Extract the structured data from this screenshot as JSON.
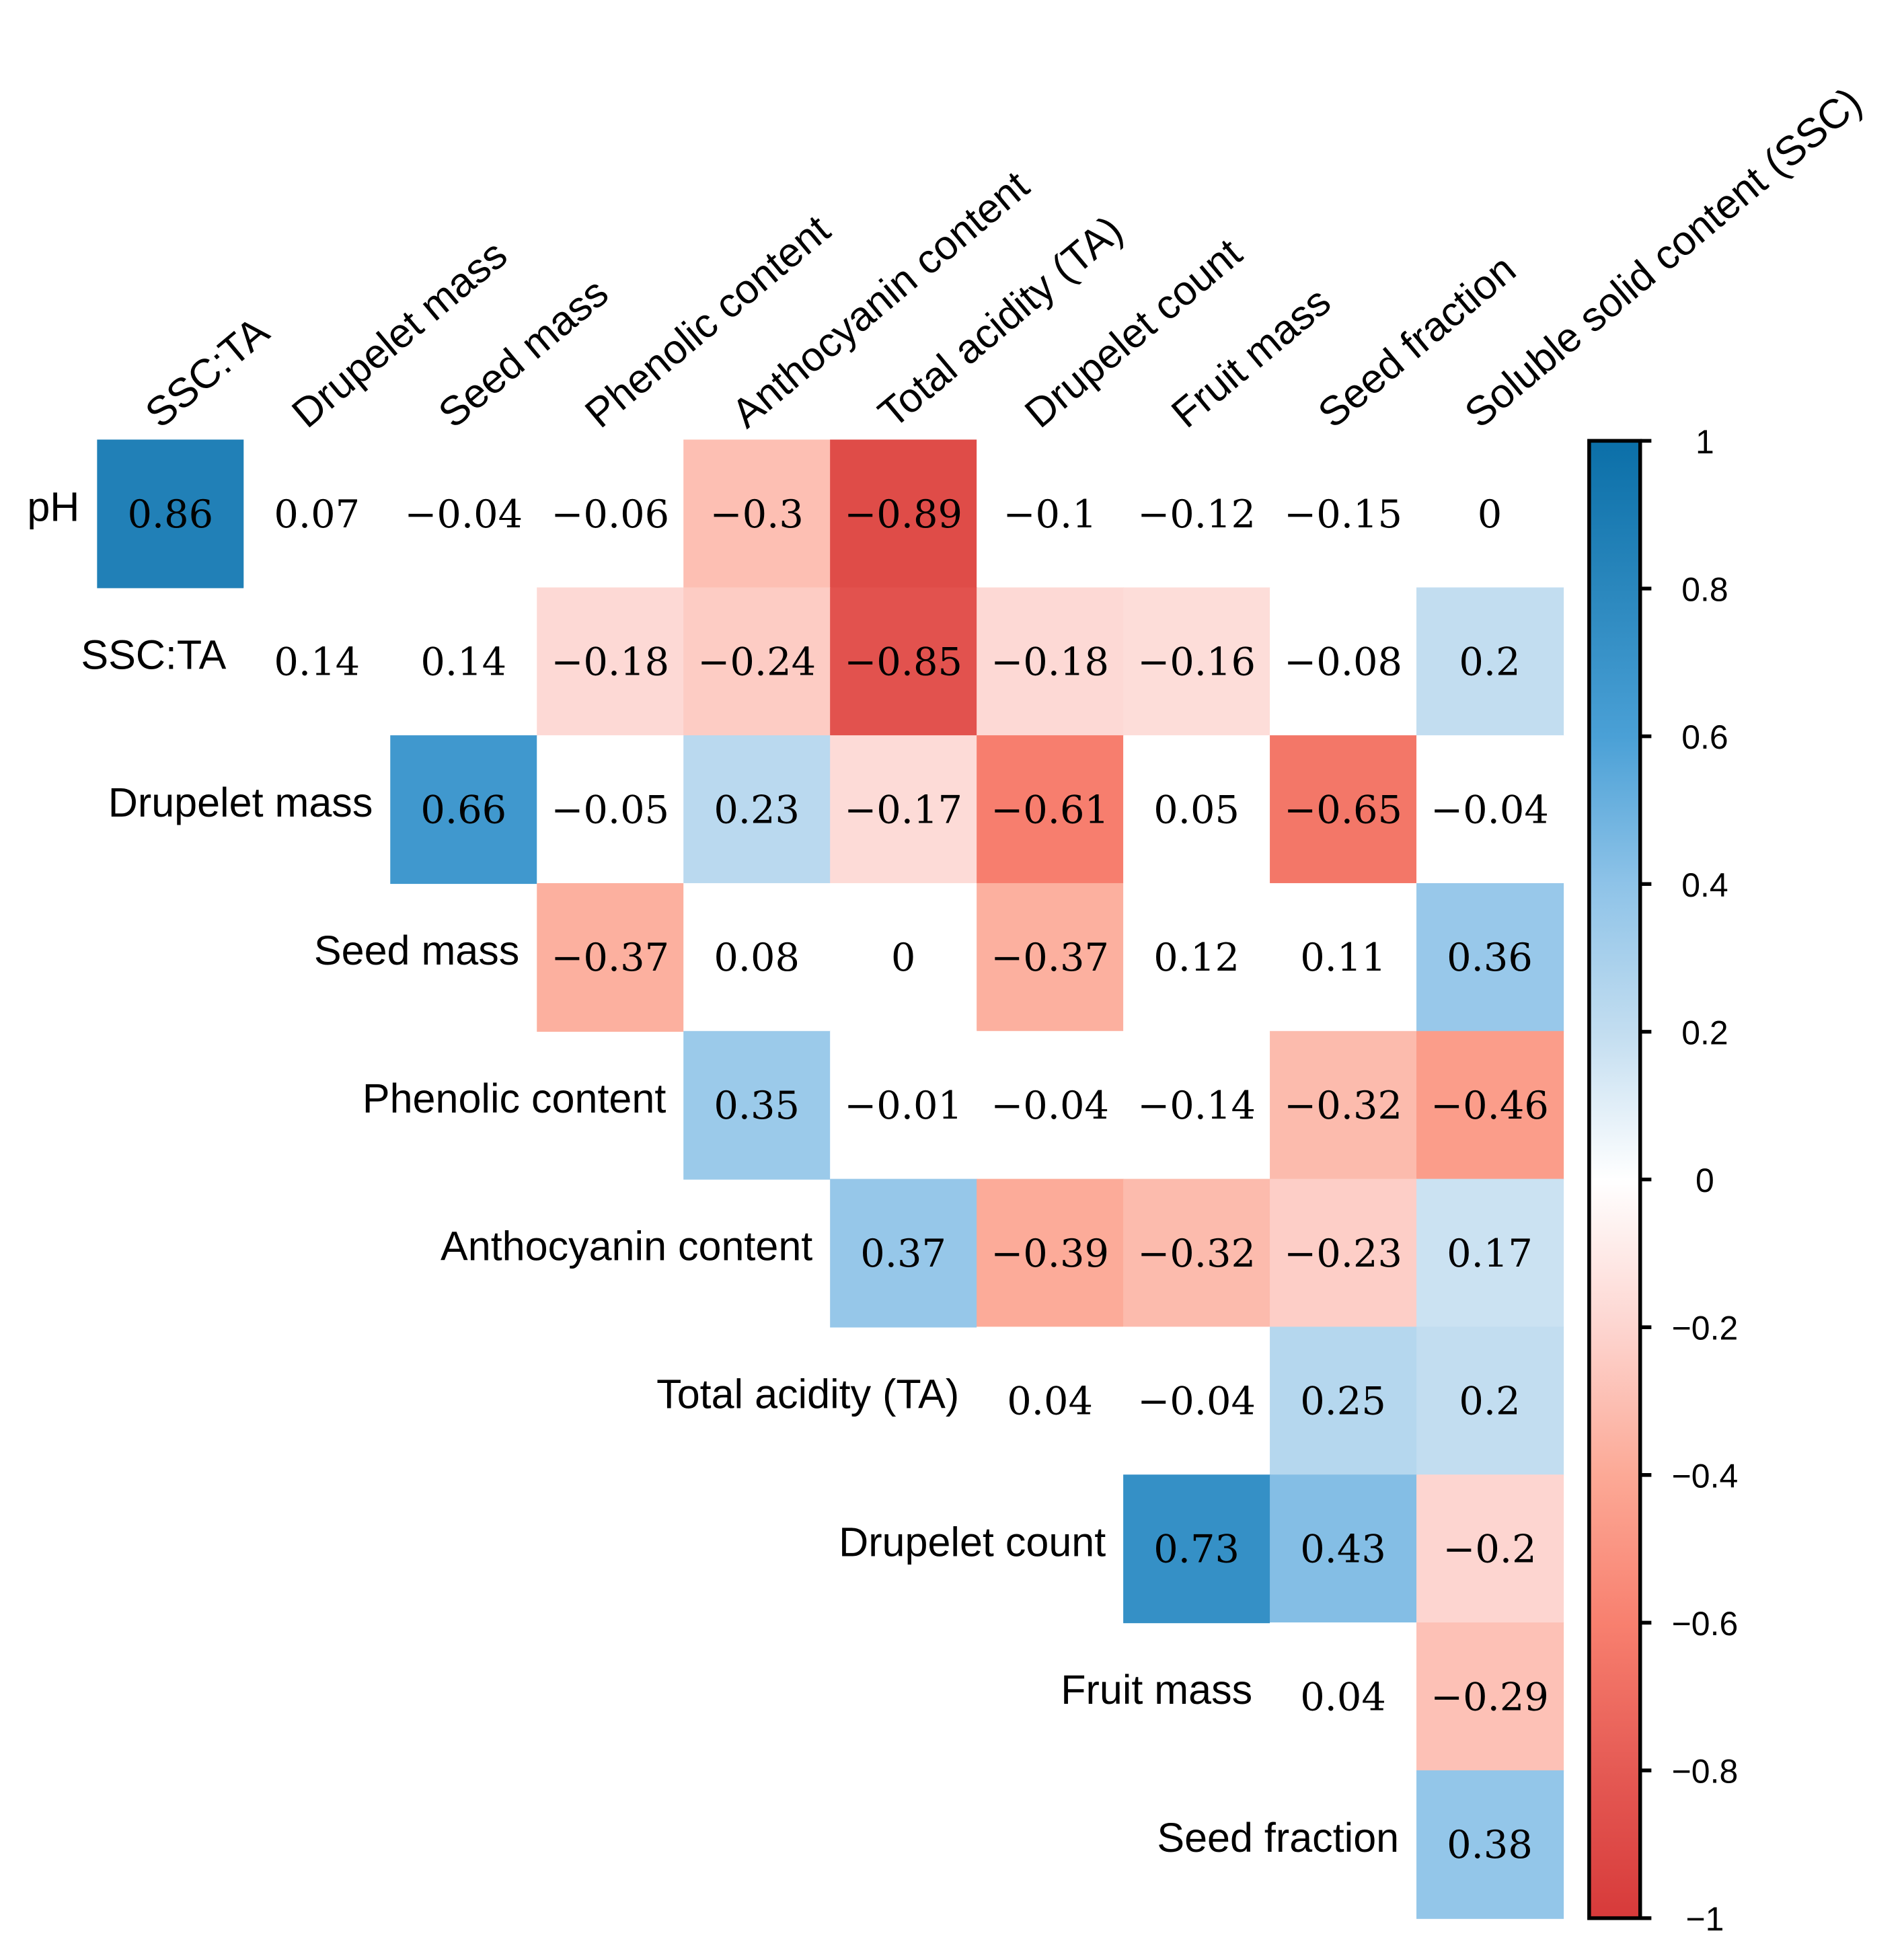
{
  "chart_data": {
    "type": "heatmap",
    "title": "",
    "columns": [
      "SSC:TA",
      "Drupelet mass",
      "Seed mass",
      "Phenolic content",
      "Anthocyanin content",
      "Total acidity (TA)",
      "Drupelet count",
      "Fruit mass",
      "Seed fraction",
      "Soluble solid content (SSC)"
    ],
    "rows": [
      "pH",
      "SSC:TA",
      "Drupelet mass",
      "Seed mass",
      "Phenolic content",
      "Anthocyanin content",
      "Total acidity (TA)",
      "Drupelet count",
      "Fruit mass",
      "Seed fraction"
    ],
    "values": [
      [
        0.86,
        0.07,
        -0.04,
        -0.06,
        -0.3,
        -0.89,
        -0.1,
        -0.12,
        -0.15,
        0
      ],
      [
        0.14,
        0.14,
        -0.18,
        -0.24,
        -0.85,
        -0.18,
        -0.16,
        -0.08,
        0.2
      ],
      [
        0.66,
        -0.05,
        0.23,
        -0.17,
        -0.61,
        0.05,
        -0.65,
        -0.04
      ],
      [
        -0.37,
        0.08,
        0,
        -0.37,
        0.12,
        0.11,
        0.36
      ],
      [
        0.35,
        -0.01,
        -0.04,
        -0.14,
        -0.32,
        -0.46
      ],
      [
        0.37,
        -0.39,
        -0.32,
        -0.23,
        0.17
      ],
      [
        0.04,
        -0.04,
        0.25,
        0.2
      ],
      [
        0.73,
        0.43,
        -0.2
      ],
      [
        0.04,
        -0.29
      ],
      [
        0.38
      ]
    ],
    "value_labels": [
      [
        "0.86",
        "0.07",
        "−0.04",
        "−0.06",
        "−0.3",
        "−0.89",
        "−0.1",
        "−0.12",
        "−0.15",
        "0"
      ],
      [
        "0.14",
        "0.14",
        "−0.18",
        "−0.24",
        "−0.85",
        "−0.18",
        "−0.16",
        "−0.08",
        "0.2"
      ],
      [
        "0.66",
        "−0.05",
        "0.23",
        "−0.17",
        "−0.61",
        "0.05",
        "−0.65",
        "−0.04"
      ],
      [
        "−0.37",
        "0.08",
        "0",
        "−0.37",
        "0.12",
        "0.11",
        "0.36"
      ],
      [
        "0.35",
        "−0.01",
        "−0.04",
        "−0.14",
        "−0.32",
        "−0.46"
      ],
      [
        "0.37",
        "−0.39",
        "−0.32",
        "−0.23",
        "0.17"
      ],
      [
        "0.04",
        "−0.04",
        "0.25",
        "0.2"
      ],
      [
        "0.73",
        "0.43",
        "−0.2"
      ],
      [
        "0.04",
        "−0.29"
      ],
      [
        "0.38"
      ]
    ],
    "layout": "upper-triangle",
    "colorbar": {
      "range": [
        -1,
        1
      ],
      "ticks": [
        1,
        0.8,
        0.6,
        0.4,
        0.2,
        0,
        -0.2,
        -0.4,
        -0.6,
        -0.8,
        -1
      ],
      "tick_labels": [
        "1",
        "0.8",
        "0.6",
        "0.4",
        "0.2",
        "0",
        "−0.2",
        "−0.4",
        "−0.6",
        "−0.8",
        "−1"
      ],
      "placement": "right",
      "colors": [
        "#d73a3a",
        "#e55a54",
        "#f8806f",
        "#fca996",
        "#fdd5d0",
        "#ffffff",
        "#c2ddf0",
        "#8ec3e8",
        "#4aa0d6",
        "#2a87bd",
        "#0b6fa8"
      ]
    }
  }
}
